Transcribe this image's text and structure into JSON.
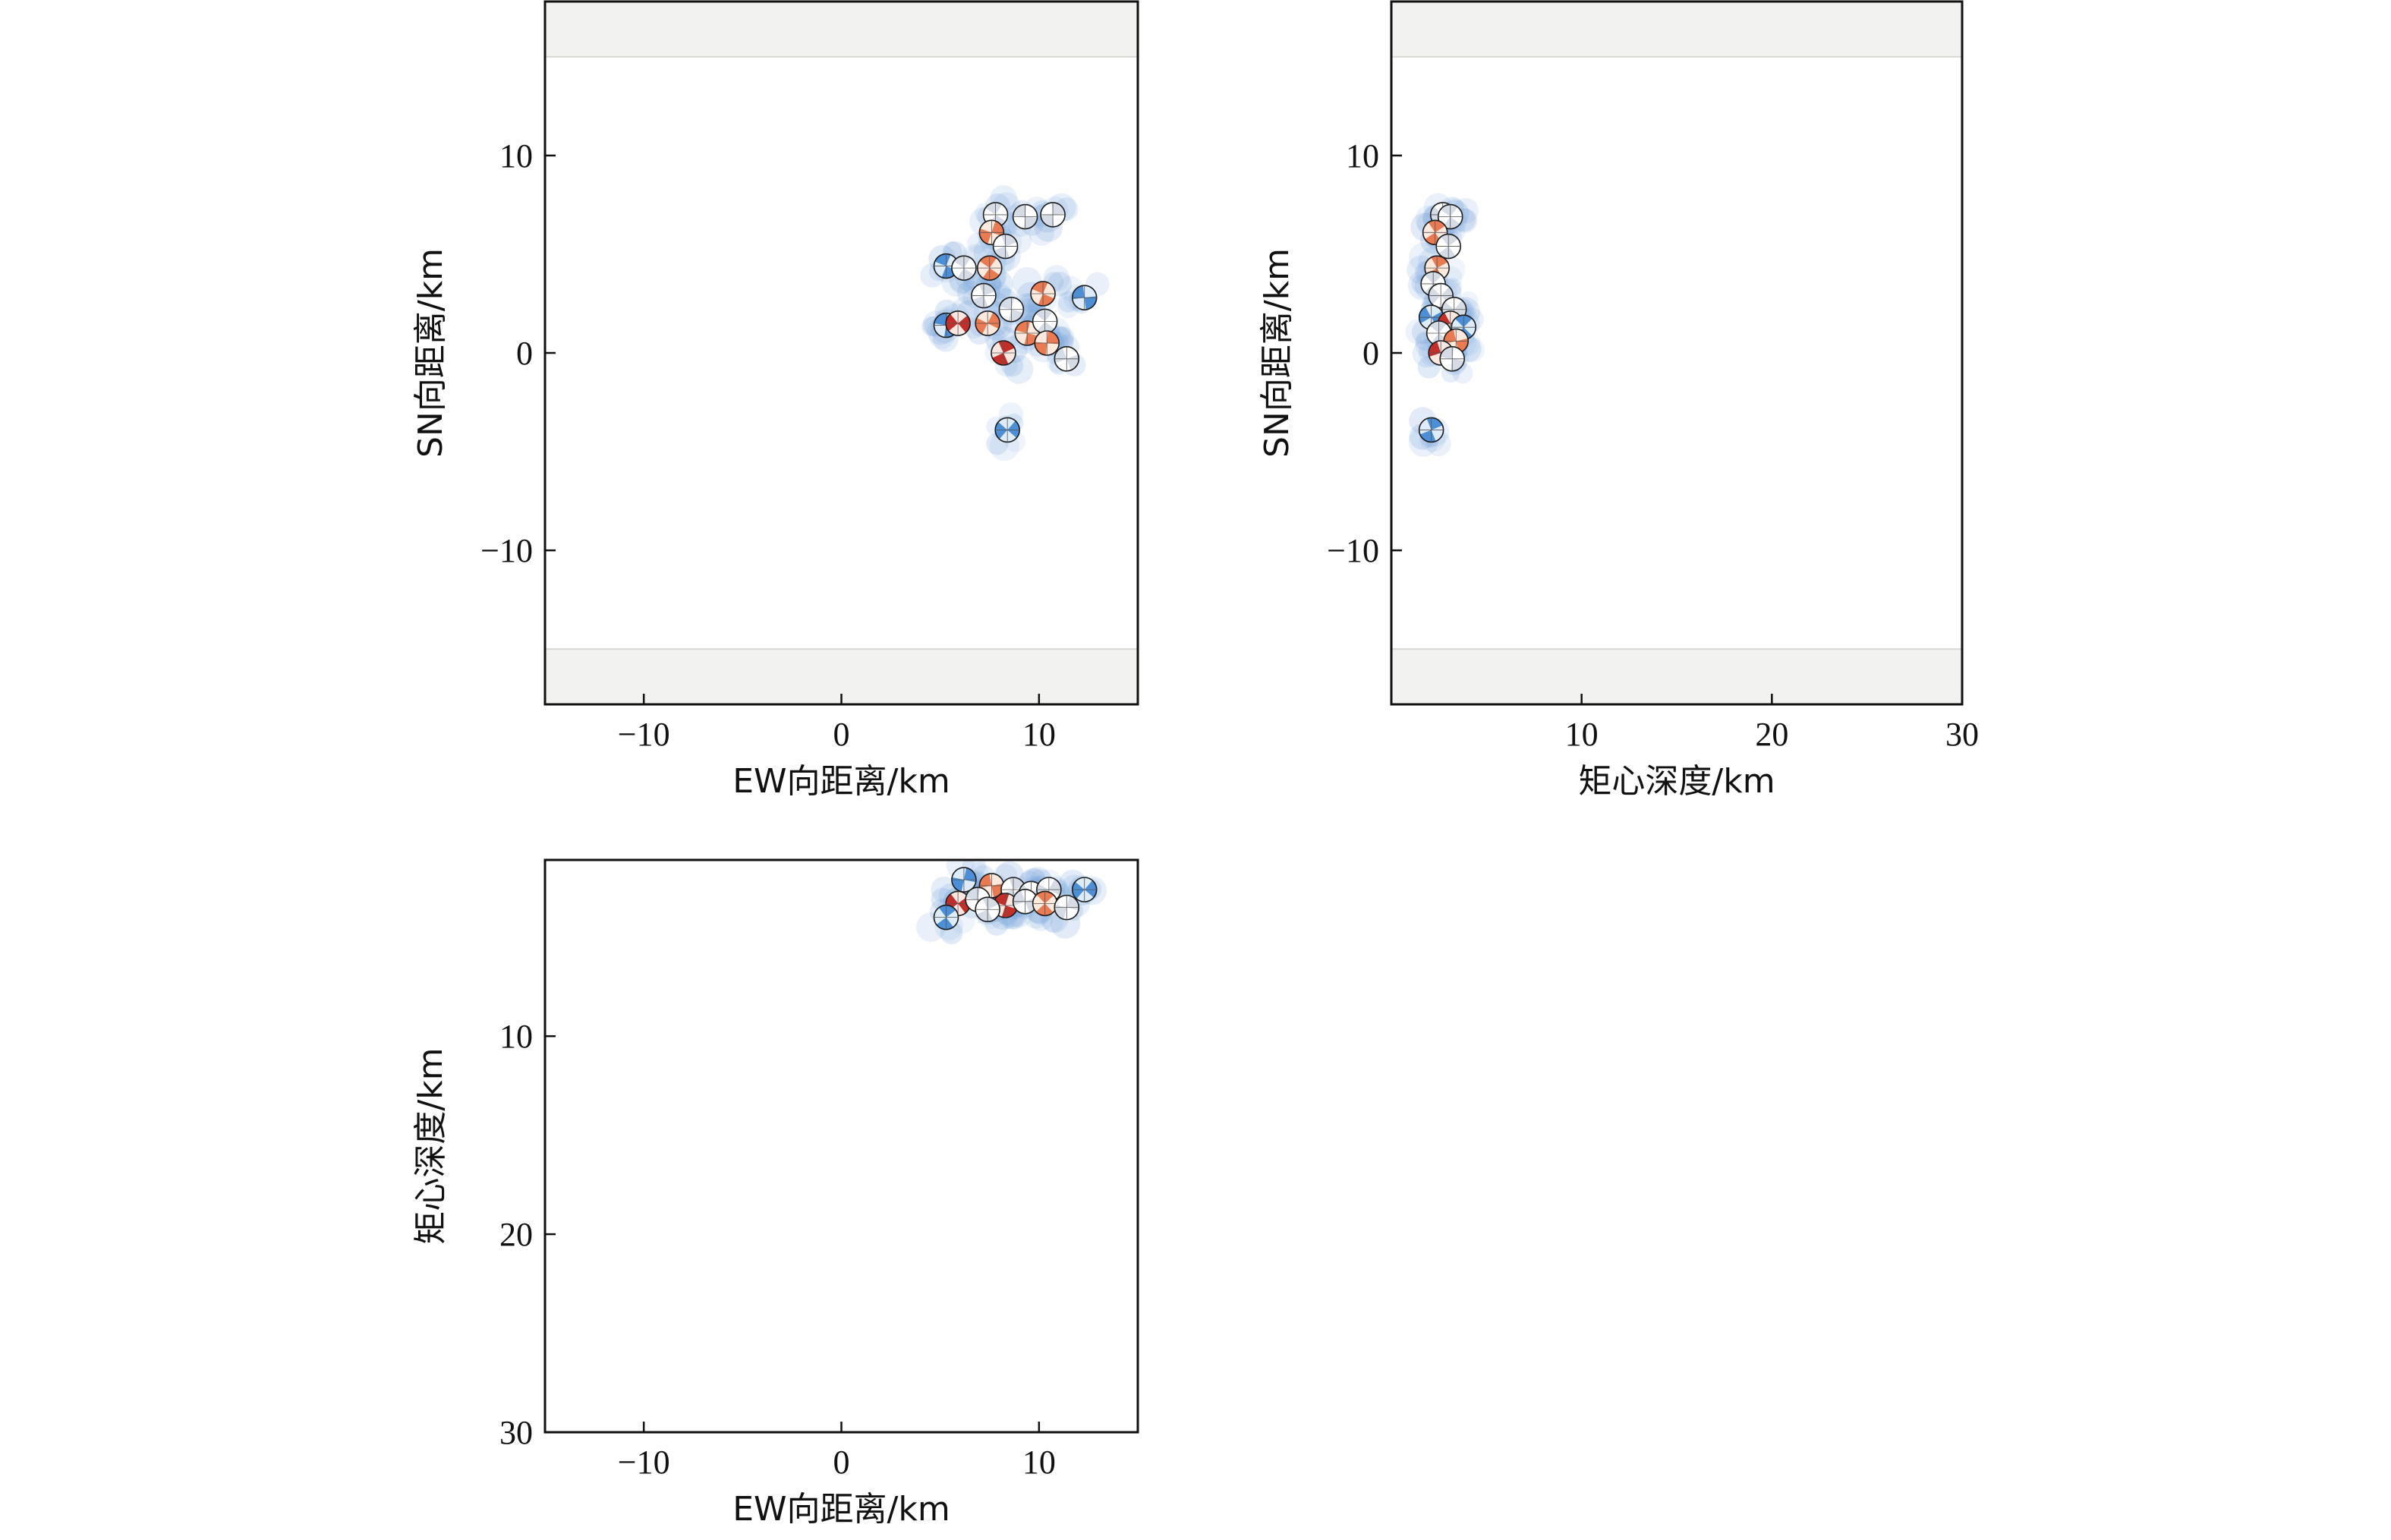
{
  "chart_data": [
    {
      "id": "map_view",
      "type": "scatter",
      "xlabel": "EW向距离/km",
      "ylabel": "SN向距离/km",
      "xlim": [
        -15,
        15
      ],
      "ylim": [
        -17.8,
        17.8
      ],
      "xticks": [
        -10,
        0,
        10
      ],
      "xtick_labels": [
        "−10",
        "0",
        "10"
      ],
      "yticks": [
        -10,
        0,
        10
      ],
      "ytick_labels": [
        "−10",
        "0",
        "10"
      ],
      "invert_y": false,
      "shaded_bands_y": [
        [
          15,
          17.8
        ],
        [
          -17.8,
          -15
        ]
      ],
      "grid": false,
      "points": [
        {
          "x": 7.8,
          "y": 7.0,
          "kind": "white"
        },
        {
          "x": 9.3,
          "y": 6.9,
          "kind": "white"
        },
        {
          "x": 10.7,
          "y": 7.0,
          "kind": "white"
        },
        {
          "x": 7.6,
          "y": 6.1,
          "kind": "orange"
        },
        {
          "x": 8.3,
          "y": 5.4,
          "kind": "white"
        },
        {
          "x": 7.5,
          "y": 4.3,
          "kind": "orange"
        },
        {
          "x": 5.3,
          "y": 4.4,
          "kind": "blue"
        },
        {
          "x": 6.2,
          "y": 4.3,
          "kind": "white"
        },
        {
          "x": 7.2,
          "y": 2.9,
          "kind": "white"
        },
        {
          "x": 10.2,
          "y": 3.0,
          "kind": "orange"
        },
        {
          "x": 12.3,
          "y": 2.8,
          "kind": "blue"
        },
        {
          "x": 8.6,
          "y": 2.2,
          "kind": "white"
        },
        {
          "x": 5.3,
          "y": 1.4,
          "kind": "blue"
        },
        {
          "x": 5.9,
          "y": 1.5,
          "kind": "red"
        },
        {
          "x": 7.4,
          "y": 1.5,
          "kind": "orange"
        },
        {
          "x": 9.4,
          "y": 1.0,
          "kind": "orange"
        },
        {
          "x": 10.3,
          "y": 1.6,
          "kind": "white"
        },
        {
          "x": 10.4,
          "y": 0.5,
          "kind": "orange"
        },
        {
          "x": 8.2,
          "y": 0.0,
          "kind": "red"
        },
        {
          "x": 11.4,
          "y": -0.3,
          "kind": "white"
        },
        {
          "x": 8.4,
          "y": -3.9,
          "kind": "blue"
        }
      ]
    },
    {
      "id": "depth_vs_sn",
      "type": "scatter",
      "xlabel": "矩心深度/km",
      "ylabel": "SN向距离/km",
      "xlim": [
        0,
        30
      ],
      "ylim": [
        -17.8,
        17.8
      ],
      "xticks": [
        10,
        20,
        30
      ],
      "xtick_labels": [
        "10",
        "20",
        "30"
      ],
      "yticks": [
        -10,
        0,
        10
      ],
      "ytick_labels": [
        "−10",
        "0",
        "10"
      ],
      "invert_y": false,
      "shaded_bands_y": [
        [
          15,
          17.8
        ],
        [
          -17.8,
          -15
        ]
      ],
      "grid": false,
      "points": [
        {
          "x": 2.7,
          "y": 7.0,
          "kind": "white"
        },
        {
          "x": 3.1,
          "y": 6.9,
          "kind": "white"
        },
        {
          "x": 2.3,
          "y": 6.1,
          "kind": "orange"
        },
        {
          "x": 3.0,
          "y": 5.4,
          "kind": "white"
        },
        {
          "x": 2.4,
          "y": 4.3,
          "kind": "orange"
        },
        {
          "x": 2.2,
          "y": 3.5,
          "kind": "white"
        },
        {
          "x": 2.6,
          "y": 2.9,
          "kind": "white"
        },
        {
          "x": 3.3,
          "y": 2.2,
          "kind": "white"
        },
        {
          "x": 2.1,
          "y": 1.8,
          "kind": "blue"
        },
        {
          "x": 3.1,
          "y": 1.5,
          "kind": "red"
        },
        {
          "x": 3.8,
          "y": 1.3,
          "kind": "blue"
        },
        {
          "x": 2.5,
          "y": 1.0,
          "kind": "white"
        },
        {
          "x": 3.4,
          "y": 0.6,
          "kind": "orange"
        },
        {
          "x": 2.6,
          "y": 0.0,
          "kind": "red"
        },
        {
          "x": 3.2,
          "y": -0.3,
          "kind": "white"
        },
        {
          "x": 2.1,
          "y": -3.9,
          "kind": "blue"
        }
      ]
    },
    {
      "id": "ew_vs_depth",
      "type": "scatter",
      "xlabel": "EW向距离/km",
      "ylabel": "矩心深度/km",
      "xlim": [
        -15,
        15
      ],
      "ylim": [
        1.1,
        30
      ],
      "xticks": [
        -10,
        0,
        10
      ],
      "xtick_labels": [
        "−10",
        "0",
        "10"
      ],
      "yticks": [
        10,
        20,
        30
      ],
      "ytick_labels": [
        "10",
        "20",
        "30"
      ],
      "invert_y": true,
      "shaded_bands_y": [],
      "grid": false,
      "points": [
        {
          "x": 6.2,
          "y": 2.1,
          "kind": "blue"
        },
        {
          "x": 7.6,
          "y": 2.4,
          "kind": "orange"
        },
        {
          "x": 8.7,
          "y": 2.6,
          "kind": "white"
        },
        {
          "x": 9.6,
          "y": 2.8,
          "kind": "white"
        },
        {
          "x": 10.5,
          "y": 2.6,
          "kind": "white"
        },
        {
          "x": 12.3,
          "y": 2.6,
          "kind": "blue"
        },
        {
          "x": 5.9,
          "y": 3.3,
          "kind": "red"
        },
        {
          "x": 6.9,
          "y": 3.1,
          "kind": "white"
        },
        {
          "x": 8.3,
          "y": 3.4,
          "kind": "red"
        },
        {
          "x": 9.3,
          "y": 3.2,
          "kind": "white"
        },
        {
          "x": 10.3,
          "y": 3.3,
          "kind": "orange"
        },
        {
          "x": 11.4,
          "y": 3.5,
          "kind": "white"
        },
        {
          "x": 7.4,
          "y": 3.6,
          "kind": "white"
        },
        {
          "x": 5.3,
          "y": 4.0,
          "kind": "blue"
        }
      ]
    }
  ]
}
